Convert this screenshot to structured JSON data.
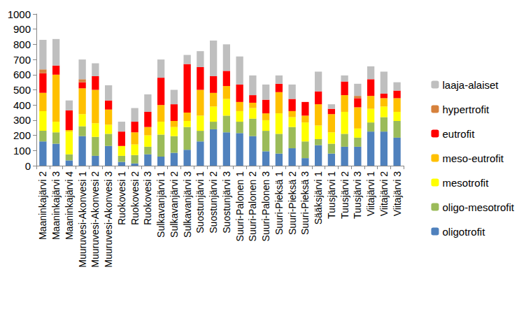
{
  "chart_data": {
    "type": "bar",
    "stacked": true,
    "grid": false,
    "legend": "right",
    "categories": [
      "Maaninkajärvi 2",
      "Maaninkajärvi 3",
      "Maaninkajärvi 4",
      "Muuruvesi-Akonvesi 1",
      "Muuruvesi-Akonvesi 2",
      "Muuruvesi-Akonvesi 3",
      "Ruokovesi 1",
      "Ruokovesi 2",
      "Ruokovesi 3",
      "Sulkavanjärvi 1",
      "Sulkavanjärvi 2",
      "Sulkavanjärvi 3",
      "Suostunjärvi 1",
      "Suostunjärvi 2",
      "Suostunjärvi 3",
      "Suuri-Palonen 1",
      "Suuri-Palonen 2",
      "Suuri-Palonen 3",
      "Suuri-Pieksä 1",
      "Suuri-Pieksä 2",
      "Suuri-Pieksä 3",
      "Sääksjärvi 1",
      "Tuusjärvi 1",
      "Tuusjärvi 2",
      "Tuusjärvi 3",
      "Viitajärvi 1",
      "Viitajärvi 2",
      "Viitajärvi 3"
    ],
    "series": [
      {
        "name": "oligotrofit",
        "color": "#4f81bd",
        "values": [
          160,
          145,
          35,
          195,
          65,
          130,
          25,
          15,
          75,
          60,
          85,
          105,
          160,
          240,
          220,
          215,
          195,
          95,
          80,
          115,
          50,
          135,
          80,
          125,
          125,
          225,
          225,
          185
        ]
      },
      {
        "name": "oligo-mesotrofit",
        "color": "#9bbb59",
        "values": [
          70,
          75,
          40,
          65,
          125,
          80,
          40,
          55,
          50,
          145,
          110,
          150,
          70,
          50,
          110,
          75,
          115,
          135,
          130,
          140,
          110,
          40,
          65,
          85,
          60,
          60,
          95,
          110
        ]
      },
      {
        "name": "mesotrofit",
        "color": "#ffff00",
        "values": [
          130,
          70,
          150,
          80,
          90,
          60,
          65,
          70,
          75,
          85,
          60,
          40,
          100,
          100,
          110,
          70,
          70,
          70,
          135,
          65,
          125,
          90,
          75,
          145,
          60,
          90,
          70,
          60
        ]
      },
      {
        "name": "meso-eutrofit",
        "color": "#ffc000",
        "values": [
          120,
          310,
          10,
          170,
          220,
          100,
          0,
          80,
          55,
          110,
          40,
          55,
          170,
          90,
          85,
          60,
          35,
          45,
          140,
          40,
          45,
          140,
          120,
          110,
          140,
          85,
          55,
          90
        ]
      },
      {
        "name": "eutrofit",
        "color": "#ff0000",
        "values": [
          130,
          60,
          130,
          40,
          90,
          60,
          95,
          70,
          100,
          180,
          110,
          320,
          150,
          110,
          100,
          115,
          50,
          90,
          55,
          80,
          90,
          85,
          35,
          90,
          60,
          110,
          30,
          50
        ]
      },
      {
        "name": "hypertrofit",
        "color": "#d6813c",
        "values": [
          25,
          0,
          0,
          20,
          0,
          0,
          0,
          0,
          0,
          0,
          0,
          0,
          0,
          0,
          0,
          0,
          0,
          0,
          0,
          0,
          0,
          0,
          0,
          0,
          15,
          0,
          0,
          0
        ]
      },
      {
        "name": "laaja-alaiset",
        "color": "#bfbfbf",
        "values": [
          195,
          175,
          65,
          130,
          85,
          100,
          65,
          90,
          115,
          120,
          95,
          60,
          105,
          235,
          175,
          185,
          130,
          100,
          55,
          95,
          0,
          130,
          30,
          40,
          80,
          85,
          145,
          55
        ]
      }
    ],
    "ylim": [
      0,
      1000
    ],
    "yticks": [
      0,
      100,
      200,
      300,
      400,
      500,
      600,
      700,
      800,
      900,
      1000
    ]
  }
}
